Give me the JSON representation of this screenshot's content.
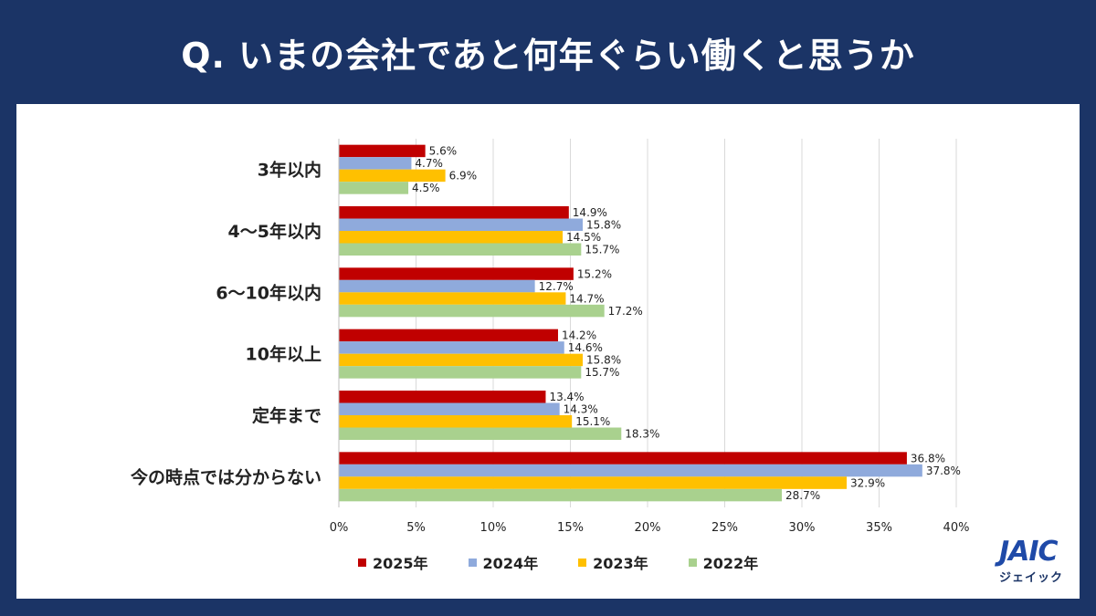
{
  "title": "Q. いまの会社であと何年ぐらい働くと思うか",
  "chart_data": {
    "type": "bar",
    "orientation": "horizontal",
    "title": "Q. いまの会社であと何年ぐらい働くと思うか",
    "categories": [
      "3年以内",
      "4～5年以内",
      "6～10年以内",
      "10年以上",
      "定年まで",
      "今の時点では分からない"
    ],
    "series": [
      {
        "name": "2025年",
        "color": "#c00000",
        "values": [
          5.6,
          14.9,
          15.2,
          14.2,
          13.4,
          36.8
        ]
      },
      {
        "name": "2024年",
        "color": "#8faadc",
        "values": [
          4.7,
          15.8,
          12.7,
          14.6,
          14.3,
          37.8
        ]
      },
      {
        "name": "2023年",
        "color": "#ffc000",
        "values": [
          6.9,
          14.5,
          14.7,
          15.8,
          15.1,
          32.9
        ]
      },
      {
        "name": "2022年",
        "color": "#a9d18e",
        "values": [
          4.5,
          15.7,
          17.2,
          15.7,
          18.3,
          28.7
        ]
      }
    ],
    "xlim": [
      0,
      40
    ],
    "xticks": [
      0,
      5,
      10,
      15,
      20,
      25,
      30,
      35,
      40
    ],
    "tick_suffix": "%",
    "grid": true,
    "legend": "bottom"
  },
  "logo": {
    "main": "JAIC",
    "sub": "ジェイック"
  }
}
